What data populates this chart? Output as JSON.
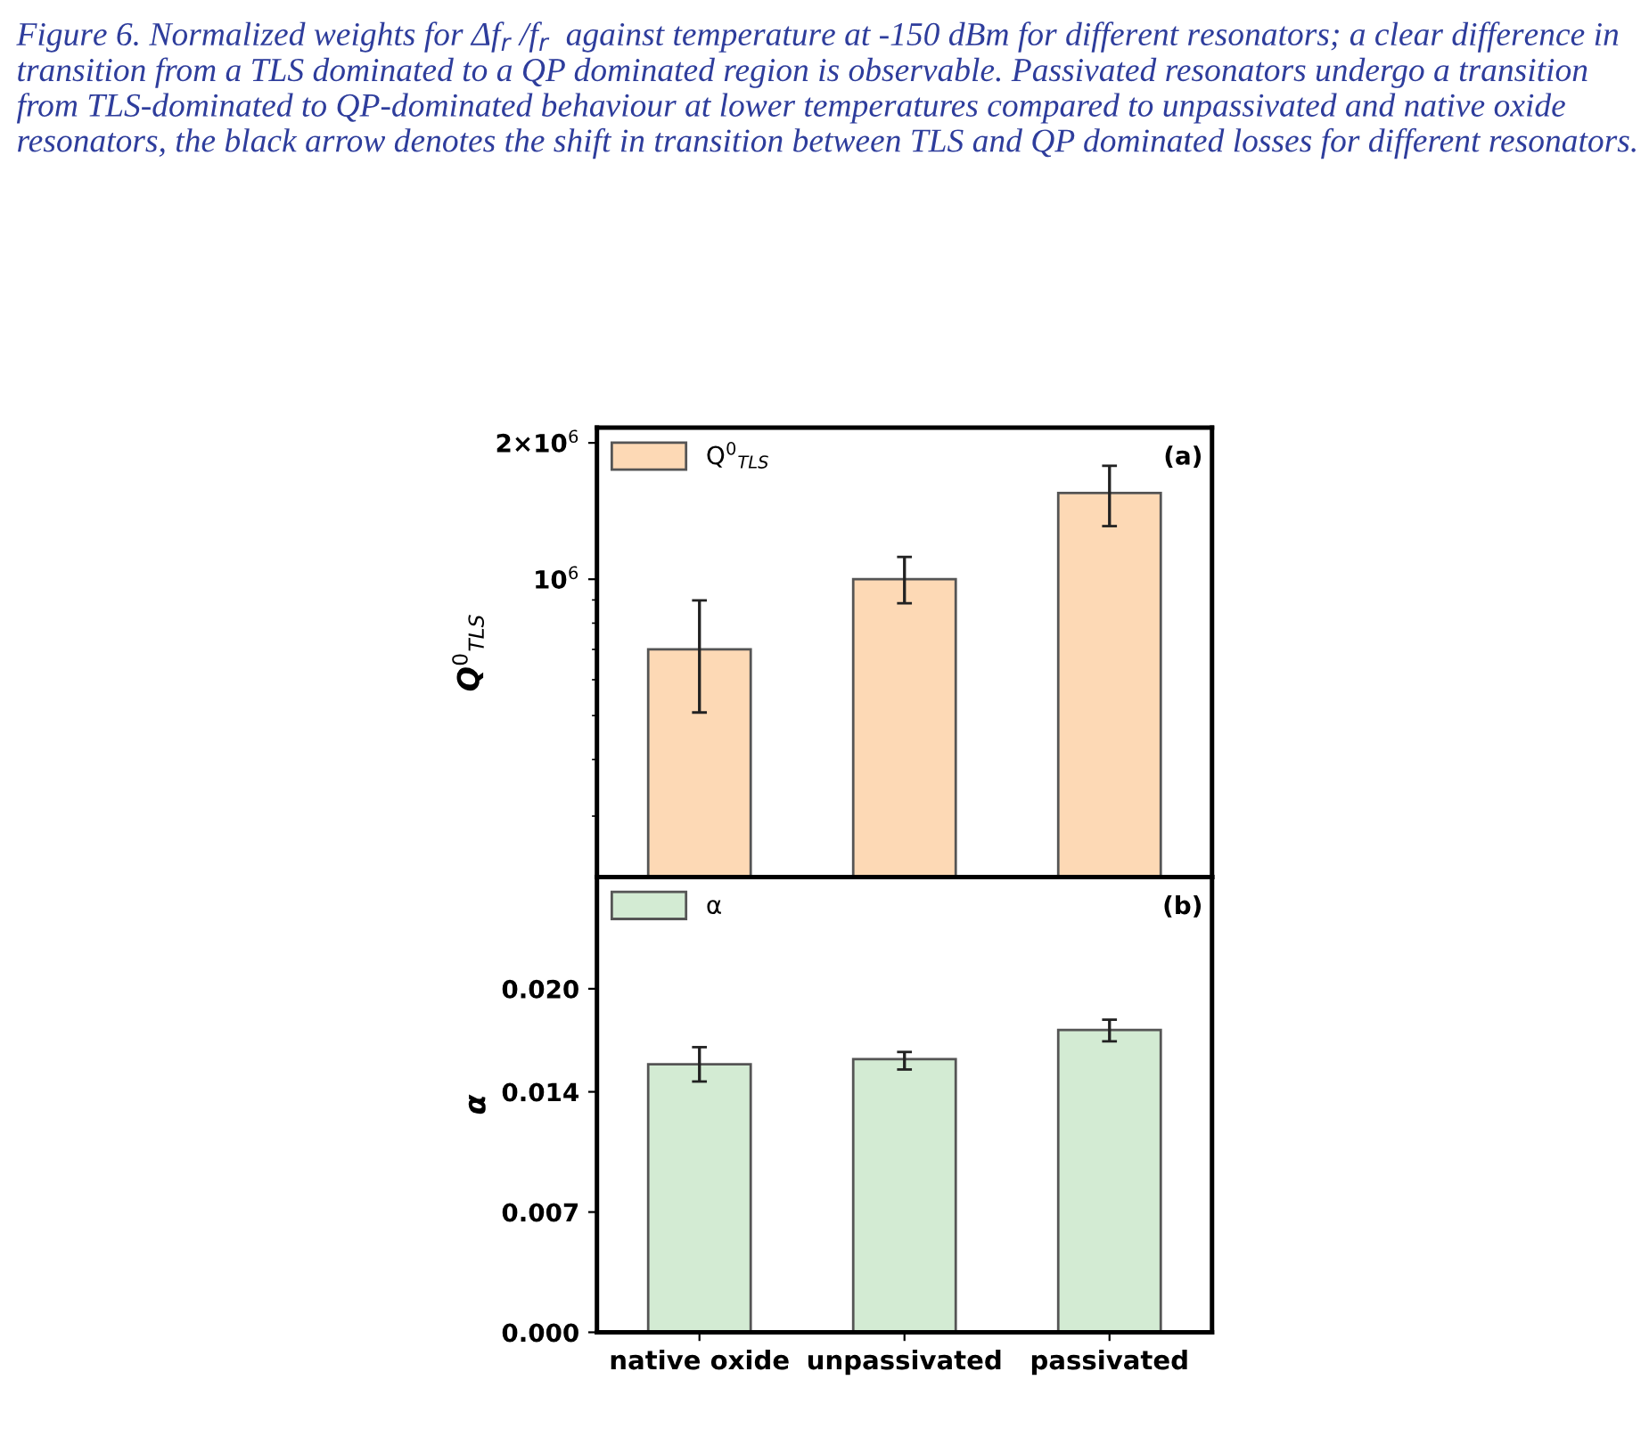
{
  "chart_data": [
    {
      "type": "bar",
      "categories": [
        null,
        null,
        null
      ],
      "series": [
        {
          "name": "Q$^{0}$$_{TLS}$",
          "color": "#fdd9b5",
          "values": [
            700000,
            1000000,
            1550000
          ],
          "errors": [
            [
              508000,
              898000
            ],
            [
              885000,
              1120000
            ],
            [
              1310000,
              1780000
            ]
          ]
        }
      ],
      "ylabel": "Q$^{0}$$_{TLS}$",
      "log": true,
      "ylim": [
        220000,
        2160000
      ],
      "yticks": [
        {
          "value": 1000000,
          "label": "10$^{6}$"
        },
        {
          "value": 2000000,
          "label": "2×10$^{6}$"
        }
      ],
      "tick_labels": "y",
      "legend": "top left",
      "annotations": [
        "Figure 6. Normalized weights for Δf$_{r}$ /f$_{r}$  against temperature at -150 dBm for different resonators; a clear difference in transition from a TLS dominated to a QP dominated region is observable. Passivated resonators undergo a transition from TLS-dominated to QP-dominated behaviour at lower temperatures compared to unpassivated and native oxide resonators, the black arrow denotes the shift in transition between TLS and QP dominated losses for different resonators.",
        "(a)"
      ]
    },
    {
      "type": "bar",
      "categories": [
        "native oxide",
        "unpassivated",
        "passivated"
      ],
      "series": [
        {
          "name": "α",
          "color": "#d3ebd3",
          "values": [
            0.0156,
            0.0159,
            0.0176
          ],
          "errors": [
            [
              0.0146,
              0.0166
            ],
            [
              0.0153,
              0.01632
            ],
            [
              0.01694,
              0.0182
            ]
          ]
        }
      ],
      "ylabel": "α",
      "ylim": [
        0,
        0.0265
      ],
      "yticks": [
        {
          "value": 0,
          "label": "0.000"
        },
        {
          "value": 0.007,
          "label": "0.007"
        },
        {
          "value": 0.014,
          "label": "0.014"
        },
        {
          "value": 0.02,
          "label": "0.020"
        }
      ],
      "legend": "top left",
      "annotations": [
        "(b)"
      ]
    }
  ]
}
